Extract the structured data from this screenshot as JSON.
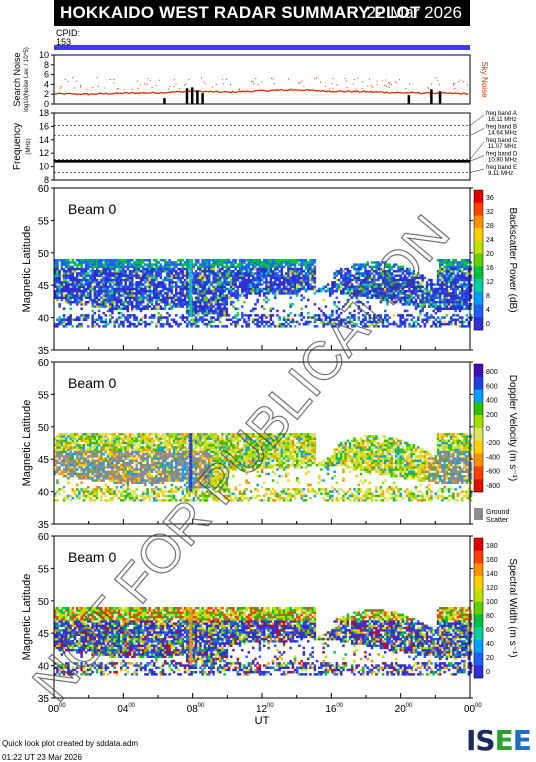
{
  "title": {
    "text": "HOKKAIDO WEST RADAR SUMMARY PLOT",
    "date": "22 Mar 2026"
  },
  "cpid": {
    "label": "CPID:",
    "value": "153"
  },
  "footer": {
    "line1": "Quick look plot created by sddata.adm",
    "line2": "01:22 UT 23 Mar 2026"
  },
  "logo": "ISEE",
  "watermark": "NOT FOR PUBLICATION",
  "colors": {
    "noise": "#d03000",
    "freq": "#000000",
    "accent": "#3a3af0",
    "ground": "#8c8c8c"
  },
  "chart_data": [
    {
      "type": "scatter",
      "name": "search-noise",
      "ylabel": "Search Noise",
      "ylabel_unit": "log10(Noise Lev. / 10^5)",
      "ylim": [
        0,
        10
      ],
      "yticks": [
        "0",
        "2",
        "4",
        "6",
        "8",
        "10"
      ],
      "right_label": "Sky Noise",
      "x": [
        0,
        2,
        4,
        6,
        8,
        10,
        12,
        14,
        16,
        18,
        20,
        22,
        24
      ],
      "values": [
        2.1,
        2.0,
        2.2,
        2.3,
        2.6,
        2.4,
        2.7,
        2.9,
        2.6,
        2.5,
        2.3,
        2.2,
        2.1
      ]
    },
    {
      "type": "line",
      "name": "frequency",
      "ylabel": "Frequency",
      "ylabel_unit": "(MHz)",
      "ylim": [
        8,
        18
      ],
      "yticks": [
        "8",
        "10",
        "12",
        "14",
        "16",
        "18"
      ],
      "bands": [
        {
          "label": "freq band A",
          "value": "16.11 MHz",
          "mhz": 16.11
        },
        {
          "label": "freq band B",
          "value": "14.64 MHz",
          "mhz": 14.64
        },
        {
          "label": "freq band C",
          "value": "11.07 MHz",
          "mhz": 11.07
        },
        {
          "label": "freq band D",
          "value": "10.80 MHz",
          "mhz": 10.8
        },
        {
          "label": "freq band E",
          "value": "9.11 MHz",
          "mhz": 9.11
        }
      ],
      "series_value": 10.8
    },
    {
      "type": "heatmap",
      "name": "backscatter-power",
      "beam": "Beam  0",
      "ylabel": "Magnetic Latitude",
      "ylim": [
        35,
        60
      ],
      "yticks": [
        "35",
        "40",
        "45",
        "50",
        "55",
        "60"
      ],
      "colorbar_label": "Backscatter Power (dB)",
      "colorbar_ticks": [
        "0",
        "4",
        "8",
        "12",
        "16",
        "20",
        "24",
        "28",
        "32",
        "36"
      ],
      "colorbar_colors": [
        "#3030d0",
        "#2060ff",
        "#00a0ff",
        "#00d0a0",
        "#00c040",
        "#60d000",
        "#c0e000",
        "#ffd000",
        "#ff9000",
        "#ff4000",
        "#e00000"
      ]
    },
    {
      "type": "heatmap",
      "name": "doppler-velocity",
      "beam": "Beam  0",
      "ylabel": "Magnetic Latitude",
      "ylim": [
        35,
        60
      ],
      "yticks": [
        "35",
        "40",
        "45",
        "50",
        "55",
        "60"
      ],
      "colorbar_label": "Doppler Velocity (m s⁻¹)",
      "colorbar_ticks": [
        "-800",
        "-600",
        "-400",
        "-200",
        "0",
        "200",
        "400",
        "600",
        "800"
      ],
      "colorbar_colors": [
        "#e01000",
        "#ff4000",
        "#ff9000",
        "#ffd000",
        "#e0e060",
        "#a0e000",
        "#30c000",
        "#00a0ff",
        "#2040e0",
        "#4010b0"
      ],
      "ground_scatter_label": "Ground Scatter"
    },
    {
      "type": "heatmap",
      "name": "spectral-width",
      "beam": "Beam  0",
      "ylabel": "Magnetic Latitude",
      "ylim": [
        35,
        60
      ],
      "yticks": [
        "35",
        "40",
        "45",
        "50",
        "55",
        "60"
      ],
      "colorbar_label": "Spectral Width (m s⁻¹)",
      "colorbar_ticks": [
        "0",
        "20",
        "40",
        "60",
        "80",
        "100",
        "120",
        "140",
        "160",
        "180"
      ],
      "colorbar_colors": [
        "#3030d0",
        "#2060ff",
        "#00a0ff",
        "#00d0a0",
        "#00c040",
        "#60d000",
        "#c0e000",
        "#ffd000",
        "#ff9000",
        "#ff4000",
        "#e00000"
      ],
      "xlabel": "UT",
      "xticks": [
        "00",
        "04",
        "08",
        "12",
        "16",
        "20",
        "00"
      ],
      "xtick_sup": "00",
      "xlim": [
        0,
        24
      ]
    }
  ]
}
